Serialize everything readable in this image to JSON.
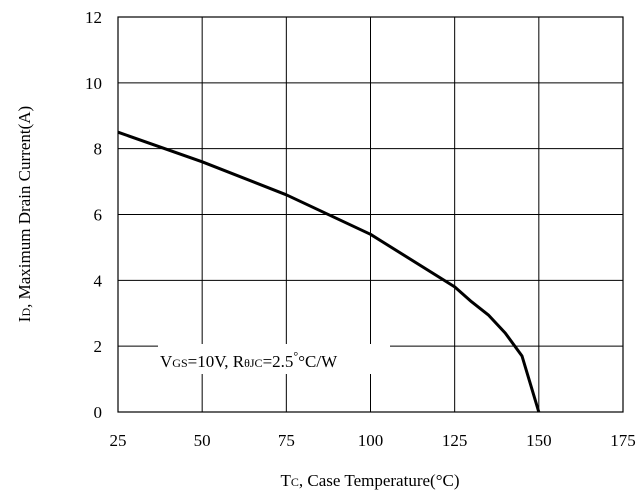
{
  "chart_data": {
    "type": "line",
    "title": "",
    "xlabel": {
      "main": "T",
      "sub": "C",
      "rest": ", Case Temperature(",
      "unit": "°C",
      "close": ")"
    },
    "ylabel": {
      "main": "I",
      "sub": "D",
      "rest": ", Maximum Drain Current(A)"
    },
    "xlim": [
      25,
      175
    ],
    "ylim": [
      0,
      12
    ],
    "xticks": [
      "25",
      "50",
      "75",
      "100",
      "125",
      "150",
      "175"
    ],
    "yticks": [
      "0",
      "2",
      "4",
      "6",
      "8",
      "10",
      "12"
    ],
    "grid": true,
    "series": [
      {
        "x": [
          25,
          50,
          75,
          100,
          125,
          130,
          135,
          140,
          145,
          150
        ],
        "y": [
          8.5,
          7.6,
          6.6,
          5.4,
          3.8,
          3.35,
          2.95,
          2.4,
          1.7,
          0.0
        ]
      }
    ],
    "annotation": {
      "v": "V",
      "v_sub": "GS",
      "v_rest": "=10V, R",
      "r_sub": "θJC",
      "r_rest": "=2.5",
      "r_unit": "°C/W"
    },
    "colors": {
      "line": "#000000",
      "grid": "#000000",
      "background": "#ffffff"
    }
  }
}
